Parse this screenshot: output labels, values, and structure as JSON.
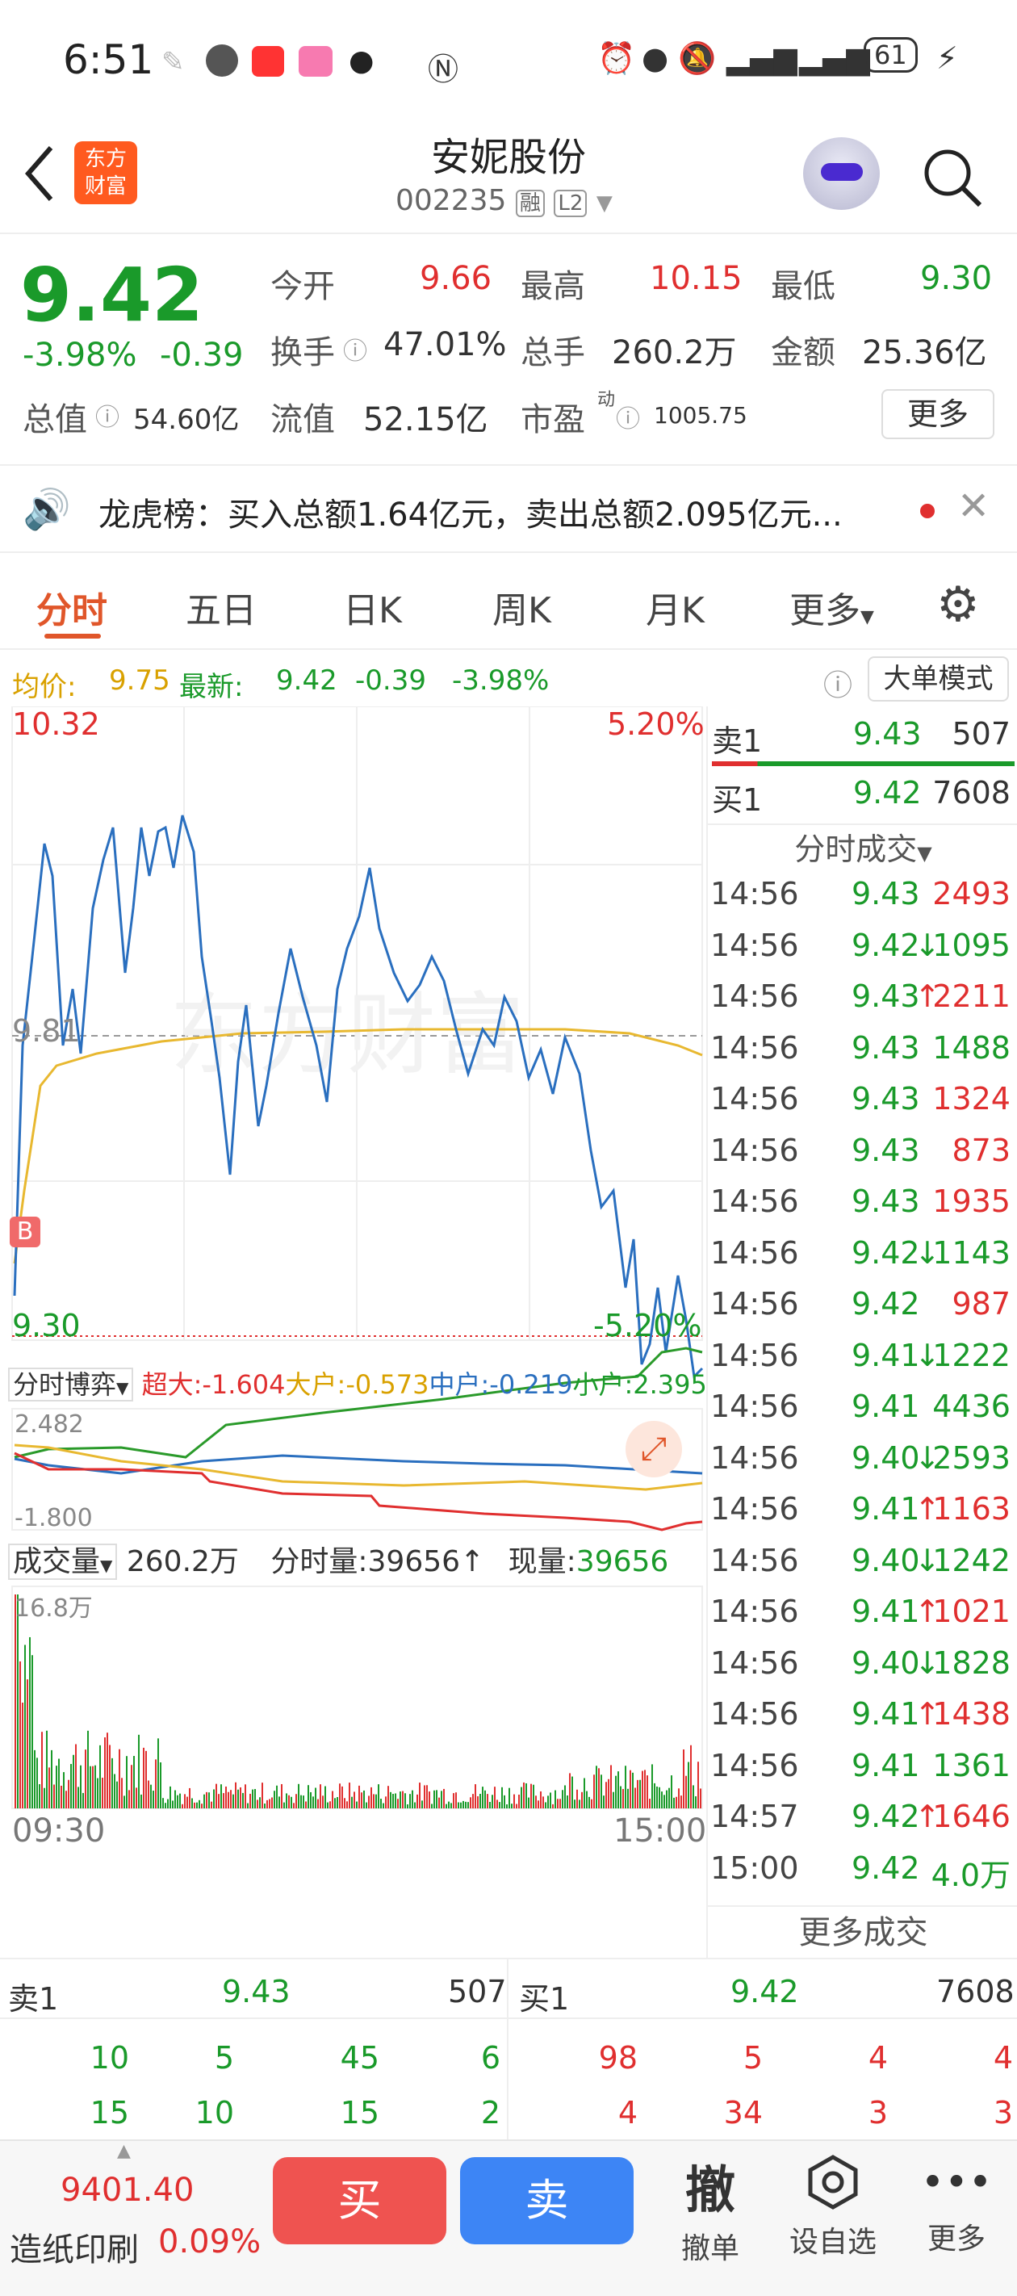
{
  "status": {
    "time": "6:51",
    "battery": "61"
  },
  "header": {
    "back_icon": "back-arrow-icon",
    "logo_line1": "东方",
    "logo_line2": "财富",
    "title": "安妮股份",
    "code": "002235",
    "badge1": "融",
    "badge2": "L2"
  },
  "quote": {
    "price": "9.42",
    "change_pct": "-3.98%",
    "change": "-0.39",
    "open_label": "今开",
    "open": "9.66",
    "high_label": "最高",
    "high": "10.15",
    "low_label": "最低",
    "low": "9.30",
    "turnover_label": "换手",
    "turnover": "47.01%",
    "volume_label": "总手",
    "volume": "260.2万",
    "amount_label": "金额",
    "amount": "25.36亿",
    "mktcap_label": "总值",
    "mktcap": "54.60亿",
    "float_label": "流值",
    "float": "52.15亿",
    "pe_label": "市盈",
    "pe_sup": "动",
    "pe": "1005.75",
    "more_label": "更多"
  },
  "notice": {
    "text": "龙虎榜：买入总额1.64亿元，卖出总额2.095亿元..."
  },
  "tabs": [
    "分时",
    "五日",
    "日K",
    "周K",
    "月K",
    "更多"
  ],
  "avg": {
    "avg_label": "均价:",
    "avg": "9.75",
    "latest_label": "最新:",
    "latest": "9.42",
    "chg": "-0.39",
    "pct": "-3.98%",
    "mode_btn": "大单模式"
  },
  "chart": {
    "high": "10.32",
    "high_pct": "5.20%",
    "mid": "9.81",
    "low": "9.30",
    "low_pct": "-5.20%",
    "marker": "B",
    "boyi_label": "分时博弈",
    "big_label": "超大:-1.604",
    "large_label": "大户:-0.573",
    "mid_label": "中户:-0.219",
    "small_label": "小户:2.395",
    "boyi_max": "2.482",
    "boyi_min": "-1.800",
    "vol_label": "成交量",
    "vol_total": "260.2万",
    "vol_minute": "分时量:39656↑",
    "vol_now_label": "现量:",
    "vol_now": "39656",
    "vol_max": "16.8万",
    "t_start": "09:30",
    "t_end": "15:00"
  },
  "orderbook": {
    "ask_label": "卖1",
    "ask_price": "9.43",
    "ask_vol": "507",
    "bid_label": "买1",
    "bid_price": "9.42",
    "bid_vol": "7608",
    "ticks_label": "分时成交",
    "trades": [
      {
        "t": "14:56",
        "p": "9.43",
        "v": "2493",
        "arrow": "",
        "c": "red"
      },
      {
        "t": "14:56",
        "p": "9.42",
        "v": "1095",
        "arrow": "↓",
        "c": "green"
      },
      {
        "t": "14:56",
        "p": "9.43",
        "v": "2211",
        "arrow": "↑",
        "c": "red"
      },
      {
        "t": "14:56",
        "p": "9.43",
        "v": "1488",
        "arrow": "",
        "c": "green"
      },
      {
        "t": "14:56",
        "p": "9.43",
        "v": "1324",
        "arrow": "",
        "c": "red"
      },
      {
        "t": "14:56",
        "p": "9.43",
        "v": "873",
        "arrow": "",
        "c": "red"
      },
      {
        "t": "14:56",
        "p": "9.43",
        "v": "1935",
        "arrow": "",
        "c": "red"
      },
      {
        "t": "14:56",
        "p": "9.42",
        "v": "1143",
        "arrow": "↓",
        "c": "green"
      },
      {
        "t": "14:56",
        "p": "9.42",
        "v": "987",
        "arrow": "",
        "c": "red"
      },
      {
        "t": "14:56",
        "p": "9.41",
        "v": "1222",
        "arrow": "↓",
        "c": "green"
      },
      {
        "t": "14:56",
        "p": "9.41",
        "v": "4436",
        "arrow": "",
        "c": "green"
      },
      {
        "t": "14:56",
        "p": "9.40",
        "v": "2593",
        "arrow": "↓",
        "c": "green"
      },
      {
        "t": "14:56",
        "p": "9.41",
        "v": "1163",
        "arrow": "↑",
        "c": "red"
      },
      {
        "t": "14:56",
        "p": "9.40",
        "v": "1242",
        "arrow": "↓",
        "c": "green"
      },
      {
        "t": "14:56",
        "p": "9.41",
        "v": "1021",
        "arrow": "↑",
        "c": "red"
      },
      {
        "t": "14:56",
        "p": "9.40",
        "v": "1828",
        "arrow": "↓",
        "c": "green"
      },
      {
        "t": "14:56",
        "p": "9.41",
        "v": "1438",
        "arrow": "↑",
        "c": "red"
      },
      {
        "t": "14:56",
        "p": "9.41",
        "v": "1361",
        "arrow": "",
        "c": "green"
      },
      {
        "t": "14:57",
        "p": "9.42",
        "v": "1646",
        "arrow": "↑",
        "c": "red"
      },
      {
        "t": "15:00",
        "p": "9.42",
        "v": "4.0万",
        "arrow": "",
        "c": "green"
      }
    ],
    "more_trades": "更多成交"
  },
  "depth": {
    "ask_label": "卖1",
    "ask_price": "9.43",
    "ask_vol": "507",
    "bid_label": "买1",
    "bid_price": "9.42",
    "bid_vol": "7608",
    "ask_row1": [
      "10",
      "5",
      "45",
      "6"
    ],
    "ask_row2": [
      "15",
      "10",
      "15",
      "2"
    ],
    "bid_row1": [
      "98",
      "5",
      "4",
      "4"
    ],
    "bid_row2": [
      "4",
      "34",
      "3",
      "3"
    ]
  },
  "bottom": {
    "index_value": "9401.40",
    "index_name": "造纸印刷",
    "index_pct": "0.09%",
    "buy": "买",
    "sell": "卖",
    "cancel_big": "撤",
    "cancel": "撤单",
    "watch": "设自选",
    "more": "更多"
  },
  "chart_data": {
    "type": "line",
    "x_range": [
      "09:30",
      "15:00"
    ],
    "ylim": [
      9.3,
      10.32
    ],
    "series": []
  }
}
